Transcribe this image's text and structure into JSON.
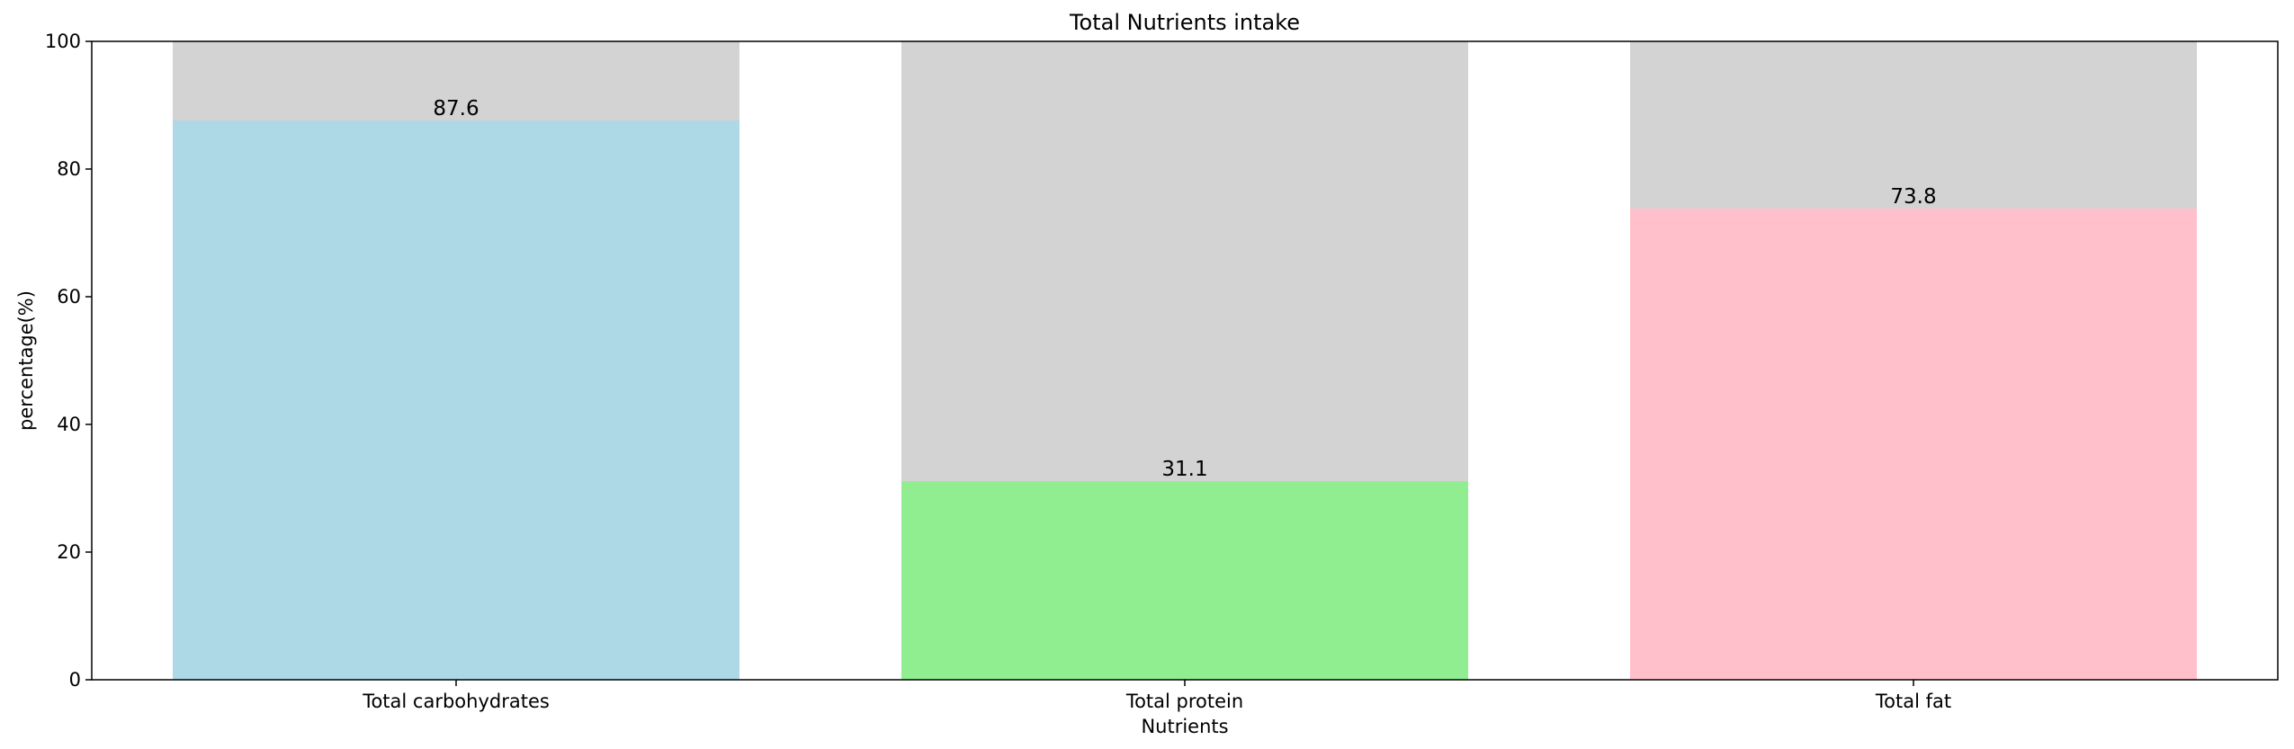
{
  "chart_data": {
    "type": "bar",
    "title": "Total Nutrients intake",
    "xlabel": "Nutrients",
    "ylabel": "percentage(%)",
    "categories": [
      "Total carbohydrates",
      "Total protein",
      "Total fat"
    ],
    "values": [
      87.6,
      31.1,
      73.8
    ],
    "value_labels": [
      "87.6",
      "31.1",
      "73.8"
    ],
    "background_values": [
      100,
      100,
      100
    ],
    "ylim": [
      0,
      100
    ],
    "yticks": [
      0,
      20,
      40,
      60,
      80,
      100
    ],
    "ytick_labels": [
      "0",
      "20",
      "40",
      "60",
      "80",
      "100"
    ],
    "grid": false,
    "colors": {
      "bars": [
        "#add8e6",
        "#90ee90",
        "#ffc0cb"
      ],
      "background_bar": "#d3d3d3",
      "axis": "#000000",
      "text": "#000000"
    }
  }
}
